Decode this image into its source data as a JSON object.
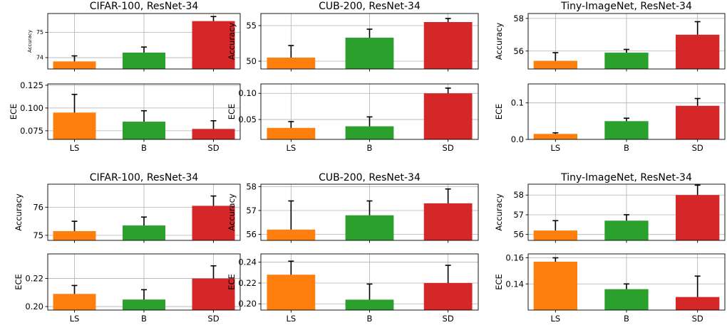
{
  "colors": {
    "LS": "#ff7f0e",
    "B": "#2ca02c",
    "SD": "#d62728",
    "grid": "#b0b0b0",
    "err": "#000000"
  },
  "chart_data": [
    {
      "type": "bar",
      "title": "CIFAR-100, ResNet-34",
      "ylabel": "Accuracy",
      "categories": [
        "LS",
        "B",
        "SD"
      ],
      "values": [
        73.85,
        74.2,
        75.45
      ],
      "errors": [
        0.22,
        0.22,
        0.18
      ],
      "ylim": [
        73.55,
        75.75
      ],
      "yticks": [
        "74",
        "75"
      ],
      "ytick_values": [
        74,
        75
      ],
      "grid": true
    },
    {
      "type": "bar",
      "title": "CUB-200, ResNet-34",
      "ylabel": "Accuracy",
      "categories": [
        "LS",
        "B",
        "SD"
      ],
      "values": [
        50.5,
        53.3,
        55.5
      ],
      "errors": [
        1.7,
        1.2,
        0.5
      ],
      "ylim": [
        48.9,
        56.7
      ],
      "yticks": [
        "50",
        "55"
      ],
      "ytick_values": [
        50,
        55
      ],
      "grid": true
    },
    {
      "type": "bar",
      "title": "Tiny-ImageNet, ResNet-34",
      "ylabel": "Accuracy",
      "categories": [
        "LS",
        "B",
        "SD"
      ],
      "values": [
        55.4,
        55.9,
        57.0
      ],
      "errors": [
        0.5,
        0.2,
        0.8
      ],
      "ylim": [
        54.9,
        58.3
      ],
      "yticks": [
        "56",
        "58"
      ],
      "ytick_values": [
        56,
        58
      ],
      "grid": true
    },
    {
      "type": "bar",
      "title": "",
      "ylabel": "ECE",
      "categories": [
        "LS",
        "B",
        "SD"
      ],
      "values": [
        0.095,
        0.085,
        0.077
      ],
      "errors": [
        0.02,
        0.012,
        0.009
      ],
      "ylim": [
        0.0655,
        0.1265
      ],
      "yticks": [
        "0.075",
        "0.100",
        "0.125"
      ],
      "ytick_values": [
        0.075,
        0.1,
        0.125
      ],
      "grid": true
    },
    {
      "type": "bar",
      "title": "",
      "ylabel": "ECE",
      "categories": [
        "LS",
        "B",
        "SD"
      ],
      "values": [
        0.034,
        0.037,
        0.1
      ],
      "errors": [
        0.012,
        0.018,
        0.01
      ],
      "ylim": [
        0.012,
        0.118
      ],
      "yticks": [
        "0.05",
        "0.10"
      ],
      "ytick_values": [
        0.05,
        0.1
      ],
      "grid": true
    },
    {
      "type": "bar",
      "title": "",
      "ylabel": "ECE",
      "categories": [
        "LS",
        "B",
        "SD"
      ],
      "values": [
        0.015,
        0.05,
        0.092
      ],
      "errors": [
        0.003,
        0.008,
        0.02
      ],
      "ylim": [
        0,
        0.152
      ],
      "yticks": [
        "0.0",
        "0.1"
      ],
      "ytick_values": [
        0,
        0.1
      ],
      "grid": true
    },
    {
      "type": "bar",
      "title": "CIFAR-100, ResNet-34",
      "ylabel": "Accuracy",
      "categories": [
        "LS",
        "B",
        "SD"
      ],
      "values": [
        75.15,
        75.35,
        76.05
      ],
      "errors": [
        0.35,
        0.3,
        0.35
      ],
      "ylim": [
        74.82,
        76.82
      ],
      "yticks": [
        "75",
        "76"
      ],
      "ytick_values": [
        75,
        76
      ],
      "grid": true
    },
    {
      "type": "bar",
      "title": "CUB-200, ResNet-34",
      "ylabel": "Accuracy",
      "categories": [
        "LS",
        "B",
        "SD"
      ],
      "values": [
        56.2,
        56.8,
        57.3
      ],
      "errors": [
        1.2,
        0.6,
        0.6
      ],
      "ylim": [
        55.75,
        58.1
      ],
      "yticks": [
        "56",
        "57",
        "58"
      ],
      "ytick_values": [
        56,
        57,
        58
      ],
      "grid": true
    },
    {
      "type": "bar",
      "title": "Tiny-ImageNet, ResNet-34",
      "ylabel": "Accuracy",
      "categories": [
        "LS",
        "B",
        "SD"
      ],
      "values": [
        56.2,
        56.7,
        58.0
      ],
      "errors": [
        0.5,
        0.3,
        0.5
      ],
      "ylim": [
        55.7,
        58.55
      ],
      "yticks": [
        "56",
        "57",
        "58"
      ],
      "ytick_values": [
        56,
        57,
        58
      ],
      "grid": true
    },
    {
      "type": "bar",
      "title": "",
      "ylabel": "ECE",
      "categories": [
        "LS",
        "B",
        "SD"
      ],
      "values": [
        0.209,
        0.205,
        0.22
      ],
      "errors": [
        0.006,
        0.007,
        0.009
      ],
      "ylim": [
        0.1975,
        0.2375
      ],
      "yticks": [
        "0.20",
        "0.22"
      ],
      "ytick_values": [
        0.2,
        0.22
      ],
      "grid": true
    },
    {
      "type": "bar",
      "title": "",
      "ylabel": "ECE",
      "categories": [
        "LS",
        "B",
        "SD"
      ],
      "values": [
        0.228,
        0.204,
        0.22
      ],
      "errors": [
        0.013,
        0.015,
        0.017
      ],
      "ylim": [
        0.194,
        0.248
      ],
      "yticks": [
        "0.20",
        "0.22",
        "0.24"
      ],
      "ytick_values": [
        0.2,
        0.22,
        0.24
      ],
      "grid": true
    },
    {
      "type": "bar",
      "title": "",
      "ylabel": "ECE",
      "categories": [
        "LS",
        "B",
        "SD"
      ],
      "values": [
        0.157,
        0.136,
        0.13
      ],
      "errors": [
        0.003,
        0.004,
        0.016
      ],
      "ylim": [
        0.12,
        0.163
      ],
      "yticks": [
        "0.14",
        "0.16"
      ],
      "ytick_values": [
        0.14,
        0.16
      ],
      "grid": true
    }
  ]
}
